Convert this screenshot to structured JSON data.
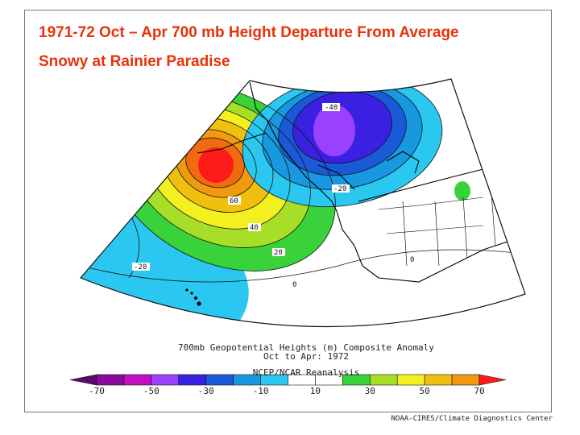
{
  "header": {
    "title": "1971-72 Oct – Apr  700 mb Height Departure From Average",
    "subtitle": "Snowy at Rainier Paradise"
  },
  "map": {
    "contour_labels": [
      "-40",
      "-20",
      "60",
      "40",
      "20",
      "0",
      "-20",
      "0"
    ]
  },
  "caption": {
    "line1": "700mb Geopotential Heights (m)   Composite Anomaly",
    "line2": "Oct to Apr: 1972",
    "line3": "NCEP/NCAR Reanalysis"
  },
  "colorbar": {
    "ticks": [
      "-70",
      "-50",
      "-30",
      "-10",
      "10",
      "30",
      "50",
      "70"
    ],
    "colors": [
      "#8a0a9e",
      "#c010c0",
      "#9a40ff",
      "#3a20e0",
      "#1a5ad8",
      "#1898e0",
      "#2ac8f0",
      "#ffffff",
      "#ffffff",
      "#3ad23a",
      "#a6de28",
      "#f4f020",
      "#f0c010",
      "#f09a10",
      "#f06a10",
      "#ff1a1a"
    ]
  },
  "footer": {
    "credit": "NOAA-CIRES/Climate Diagnostics Center"
  }
}
